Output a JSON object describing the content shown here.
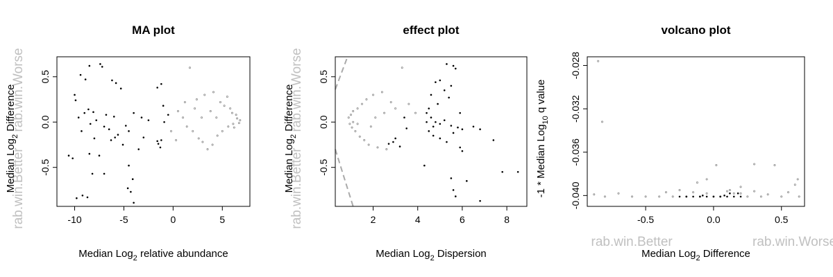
{
  "chart_data": [
    {
      "type": "scatter",
      "title": "MA plot",
      "xlabel_prefix": "Median  Log",
      "xlabel_sub": "2",
      "xlabel_suffix": " relative abundance",
      "ylabel_prefix": "Median Log",
      "ylabel_sub": "2",
      "ylabel_suffix": " Difference",
      "xlim": [
        -11.8,
        7.8
      ],
      "ylim": [
        -0.93,
        0.72
      ],
      "xticks": [
        -10,
        -5,
        0,
        5
      ],
      "yticks": [
        -0.5,
        0.0,
        0.5
      ],
      "grid": false,
      "side_labels": {
        "upper": "rab.win.Worse",
        "lower": "rab.win.Better"
      },
      "series": [
        {
          "role": "significant",
          "color": "#000000",
          "points": [
            [
              -8.5,
              0.62
            ],
            [
              -7.4,
              0.64
            ],
            [
              -7.2,
              0.61
            ],
            [
              -9.4,
              0.52
            ],
            [
              -8.9,
              0.47
            ],
            [
              -6.2,
              0.46
            ],
            [
              -5.8,
              0.43
            ],
            [
              -5.3,
              0.37
            ],
            [
              -10.0,
              0.3
            ],
            [
              -9.9,
              0.24
            ],
            [
              -8.6,
              0.14
            ],
            [
              -8.1,
              0.11
            ],
            [
              -6.8,
              0.08
            ],
            [
              -6.0,
              0.06
            ],
            [
              -4.0,
              0.1
            ],
            [
              -1.2,
              0.42
            ],
            [
              -1.6,
              0.38
            ],
            [
              -1.0,
              0.18
            ],
            [
              -0.5,
              0.08
            ],
            [
              -7.0,
              -0.05
            ],
            [
              -6.5,
              -0.08
            ],
            [
              -5.6,
              -0.14
            ],
            [
              -4.8,
              -0.04
            ],
            [
              -4.5,
              -0.1
            ],
            [
              -3.0,
              -0.17
            ],
            [
              -1.5,
              -0.24
            ],
            [
              -1.3,
              -0.28
            ],
            [
              -1.6,
              -0.21
            ],
            [
              -1.2,
              -0.2
            ],
            [
              -5.1,
              -0.25
            ],
            [
              -3.5,
              -0.3
            ],
            [
              -10.6,
              -0.37
            ],
            [
              -10.2,
              -0.4
            ],
            [
              -8.5,
              -0.35
            ],
            [
              -7.5,
              -0.37
            ],
            [
              -4.5,
              -0.48
            ],
            [
              -8.2,
              -0.57
            ],
            [
              -7.0,
              -0.57
            ],
            [
              -4.1,
              -0.63
            ],
            [
              -4.6,
              -0.73
            ],
            [
              -4.3,
              -0.77
            ],
            [
              -9.2,
              -0.81
            ],
            [
              -8.7,
              -0.83
            ],
            [
              -9.8,
              -0.84
            ],
            [
              -4.0,
              -0.89
            ],
            [
              -7.8,
              0.02
            ],
            [
              -8.4,
              -0.02
            ],
            [
              -9.6,
              0.05
            ],
            [
              -9.3,
              -0.1
            ],
            [
              -6.3,
              -0.2
            ],
            [
              -5.9,
              -0.17
            ],
            [
              -2.5,
              0.02
            ],
            [
              -0.9,
              0.0
            ],
            [
              -3.2,
              0.05
            ],
            [
              -9.0,
              0.1
            ],
            [
              -8.0,
              -0.18
            ]
          ]
        },
        {
          "role": "not_significant",
          "color": "#888888",
          "points": [
            [
              1.7,
              0.6
            ],
            [
              2.4,
              0.25
            ],
            [
              3.2,
              0.3
            ],
            [
              4.1,
              0.33
            ],
            [
              4.8,
              0.22
            ],
            [
              5.5,
              0.28
            ],
            [
              6.0,
              0.1
            ],
            [
              6.4,
              0.08
            ],
            [
              6.8,
              0.02
            ],
            [
              0.5,
              0.12
            ],
            [
              1.0,
              0.05
            ],
            [
              1.4,
              -0.05
            ],
            [
              2.0,
              -0.1
            ],
            [
              2.6,
              -0.18
            ],
            [
              3.0,
              -0.22
            ],
            [
              3.5,
              -0.3
            ],
            [
              4.0,
              -0.25
            ],
            [
              4.5,
              -0.15
            ],
            [
              5.0,
              -0.1
            ],
            [
              5.6,
              -0.05
            ],
            [
              6.1,
              -0.02
            ],
            [
              6.5,
              0.04
            ],
            [
              6.2,
              -0.06
            ],
            [
              5.8,
              0.15
            ],
            [
              3.8,
              0.12
            ],
            [
              2.9,
              0.05
            ],
            [
              2.2,
              0.15
            ],
            [
              0.3,
              -0.2
            ],
            [
              -0.2,
              -0.1
            ],
            [
              1.2,
              0.22
            ],
            [
              4.4,
              0.05
            ],
            [
              5.2,
              0.18
            ],
            [
              6.7,
              -0.01
            ]
          ]
        }
      ]
    },
    {
      "type": "scatter",
      "title": "effect plot",
      "xlabel_prefix": "Median  Log",
      "xlabel_sub": "2",
      "xlabel_suffix": " Dispersion",
      "ylabel_prefix": "Median Log",
      "ylabel_sub": "2",
      "ylabel_suffix": " Difference",
      "xlim": [
        0.3,
        8.9
      ],
      "ylim": [
        -0.93,
        0.72
      ],
      "xticks": [
        2,
        4,
        6,
        8
      ],
      "yticks": [
        -0.5,
        0.0,
        0.5
      ],
      "grid": false,
      "side_labels": {
        "upper": "rab.win.Worse",
        "lower": "rab.win.Better"
      },
      "reference_lines": [
        {
          "from": [
            0.3,
            0.36
          ],
          "to": [
            0.85,
            0.72
          ]
        },
        {
          "from": [
            0.3,
            -0.3
          ],
          "to": [
            1.1,
            -0.93
          ]
        }
      ],
      "series": [
        {
          "role": "significant",
          "color": "#000000",
          "points": [
            [
              5.3,
              0.64
            ],
            [
              5.6,
              0.62
            ],
            [
              5.7,
              0.59
            ],
            [
              5.0,
              0.46
            ],
            [
              4.8,
              0.44
            ],
            [
              5.5,
              0.4
            ],
            [
              4.6,
              0.3
            ],
            [
              5.4,
              0.27
            ],
            [
              5.9,
              0.1
            ],
            [
              4.4,
              0.1
            ],
            [
              4.6,
              0.05
            ],
            [
              4.8,
              0.0
            ],
            [
              5.0,
              -0.02
            ],
            [
              5.2,
              0.02
            ],
            [
              5.5,
              -0.04
            ],
            [
              5.8,
              -0.06
            ],
            [
              4.5,
              -0.1
            ],
            [
              4.7,
              -0.15
            ],
            [
              5.0,
              -0.18
            ],
            [
              5.3,
              -0.22
            ],
            [
              5.6,
              -0.12
            ],
            [
              6.0,
              -0.08
            ],
            [
              6.5,
              -0.05
            ],
            [
              6.8,
              -0.08
            ],
            [
              7.4,
              -0.2
            ],
            [
              3.0,
              -0.18
            ],
            [
              2.9,
              -0.22
            ],
            [
              2.7,
              -0.24
            ],
            [
              3.2,
              -0.27
            ],
            [
              3.5,
              -0.07
            ],
            [
              3.4,
              0.05
            ],
            [
              4.3,
              -0.48
            ],
            [
              5.5,
              -0.62
            ],
            [
              5.6,
              -0.75
            ],
            [
              5.7,
              -0.82
            ],
            [
              6.2,
              -0.65
            ],
            [
              6.8,
              -0.87
            ],
            [
              7.8,
              -0.55
            ],
            [
              8.5,
              -0.55
            ],
            [
              5.9,
              -0.28
            ],
            [
              6.0,
              -0.32
            ],
            [
              4.4,
              0.0
            ],
            [
              4.5,
              0.15
            ],
            [
              4.9,
              0.2
            ],
            [
              5.2,
              0.35
            ],
            [
              4.7,
              -0.05
            ]
          ]
        },
        {
          "role": "not_significant",
          "color": "#888888",
          "points": [
            [
              0.9,
              0.05
            ],
            [
              0.95,
              -0.02
            ],
            [
              1.0,
              0.08
            ],
            [
              1.05,
              -0.06
            ],
            [
              1.1,
              0.12
            ],
            [
              1.2,
              -0.1
            ],
            [
              1.3,
              0.15
            ],
            [
              1.4,
              -0.16
            ],
            [
              1.5,
              0.2
            ],
            [
              1.6,
              -0.2
            ],
            [
              1.7,
              0.25
            ],
            [
              1.8,
              -0.25
            ],
            [
              2.0,
              0.3
            ],
            [
              2.2,
              -0.28
            ],
            [
              2.4,
              0.33
            ],
            [
              2.6,
              -0.3
            ],
            [
              2.8,
              0.22
            ],
            [
              3.0,
              0.15
            ],
            [
              3.3,
              0.6
            ],
            [
              2.1,
              0.05
            ],
            [
              1.9,
              -0.05
            ],
            [
              2.5,
              0.1
            ],
            [
              1.3,
              -0.02
            ],
            [
              1.1,
              0.0
            ],
            [
              3.6,
              0.2
            ],
            [
              3.9,
              0.1
            ]
          ]
        }
      ]
    },
    {
      "type": "scatter",
      "title": "volcano plot",
      "xlabel_prefix": "Median Log",
      "xlabel_sub": "2",
      "xlabel_suffix": "  Difference",
      "ylabel_prefix": "-1 * Median Log",
      "ylabel_sub": "10",
      "ylabel_suffix": "  q value",
      "xlim": [
        -0.93,
        0.67
      ],
      "ylim": [
        -0.041,
        -0.0272
      ],
      "xticks": [
        -0.5,
        0.0,
        0.5
      ],
      "yticks": [
        -0.04,
        -0.036,
        -0.032,
        -0.028
      ],
      "grid": false,
      "side_labels": {
        "left": "rab.win.Better",
        "right": "rab.win.Worse"
      },
      "series": [
        {
          "role": "not_significant",
          "color": "#888888",
          "points": [
            [
              -0.85,
              -0.0276
            ],
            [
              -0.82,
              -0.0332
            ],
            [
              -0.88,
              -0.0399
            ],
            [
              -0.8,
              -0.0401
            ],
            [
              -0.7,
              -0.0398
            ],
            [
              -0.6,
              -0.0401
            ],
            [
              -0.5,
              -0.0401
            ],
            [
              -0.4,
              -0.0401
            ],
            [
              -0.35,
              -0.0397
            ],
            [
              -0.3,
              -0.0401
            ],
            [
              -0.25,
              -0.0395
            ],
            [
              -0.2,
              -0.0401
            ],
            [
              -0.15,
              -0.0397
            ],
            [
              -0.1,
              -0.0401
            ],
            [
              -0.05,
              -0.0398
            ],
            [
              0.0,
              -0.0401
            ],
            [
              0.05,
              -0.0401
            ],
            [
              0.1,
              -0.0396
            ],
            [
              0.15,
              -0.0398
            ],
            [
              0.2,
              -0.0392
            ],
            [
              0.25,
              -0.0401
            ],
            [
              0.3,
              -0.0396
            ],
            [
              0.35,
              -0.0401
            ],
            [
              0.4,
              -0.0399
            ],
            [
              0.45,
              -0.0372
            ],
            [
              0.5,
              -0.0401
            ],
            [
              0.55,
              -0.0397
            ],
            [
              0.6,
              -0.039
            ],
            [
              0.62,
              -0.0385
            ],
            [
              0.63,
              -0.0401
            ],
            [
              0.02,
              -0.0372
            ],
            [
              -0.05,
              -0.0385
            ],
            [
              0.12,
              -0.0395
            ],
            [
              0.3,
              -0.0371
            ],
            [
              -0.12,
              -0.0388
            ],
            [
              0.2,
              -0.0398
            ]
          ]
        },
        {
          "role": "significant",
          "color": "#000000",
          "points": [
            [
              -0.2,
              -0.0401
            ],
            [
              -0.15,
              -0.0401
            ],
            [
              -0.1,
              -0.0401
            ],
            [
              -0.05,
              -0.0401
            ],
            [
              0.0,
              -0.0401
            ],
            [
              0.05,
              -0.0401
            ],
            [
              0.1,
              -0.0401
            ],
            [
              0.15,
              -0.0401
            ],
            [
              -0.08,
              -0.04
            ],
            [
              0.08,
              -0.04
            ],
            [
              0.12,
              -0.0398
            ],
            [
              0.18,
              -0.0398
            ],
            [
              -0.25,
              -0.0401
            ],
            [
              0.2,
              -0.0401
            ]
          ]
        }
      ]
    }
  ]
}
